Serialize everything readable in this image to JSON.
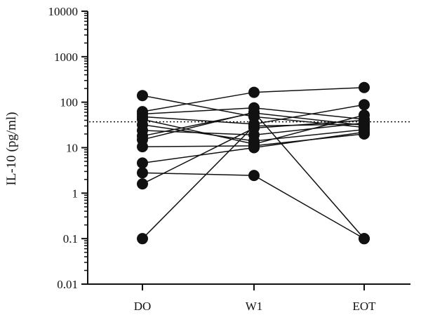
{
  "chart_data": {
    "type": "scatter",
    "title": "",
    "xlabel": "",
    "ylabel": "IL-10 (pg/ml)",
    "yscale": "log",
    "ylim": [
      0.01,
      10000
    ],
    "y_ticks": [
      "0.01",
      "0.1",
      "1",
      "10",
      "100",
      "1000",
      "10000"
    ],
    "categories": [
      "DO",
      "W1",
      "EOT"
    ],
    "reference_line": {
      "y": 37,
      "style": "dotted"
    },
    "marker_color": "#111111",
    "line_color": "#111111",
    "subjects": [
      {
        "values": [
          140,
          48,
          28
        ]
      },
      {
        "values": [
          62,
          165,
          210
        ]
      },
      {
        "values": [
          55,
          75,
          42
        ]
      },
      {
        "values": [
          48,
          33,
          88
        ]
      },
      {
        "values": [
          42,
          12,
          52
        ]
      },
      {
        "values": [
          32,
          14,
          25
        ]
      },
      {
        "values": [
          24,
          19,
          35
        ]
      },
      {
        "values": [
          18,
          58,
          31
        ]
      },
      {
        "values": [
          15,
          60,
          0.1
        ]
      },
      {
        "values": [
          10.5,
          11,
          20
        ]
      },
      {
        "values": [
          4.6,
          10,
          22
        ]
      },
      {
        "values": [
          2.8,
          2.45,
          0.1
        ]
      },
      {
        "values": [
          1.6,
          27,
          40
        ]
      },
      {
        "values": [
          0.1,
          30,
          33
        ]
      }
    ]
  }
}
